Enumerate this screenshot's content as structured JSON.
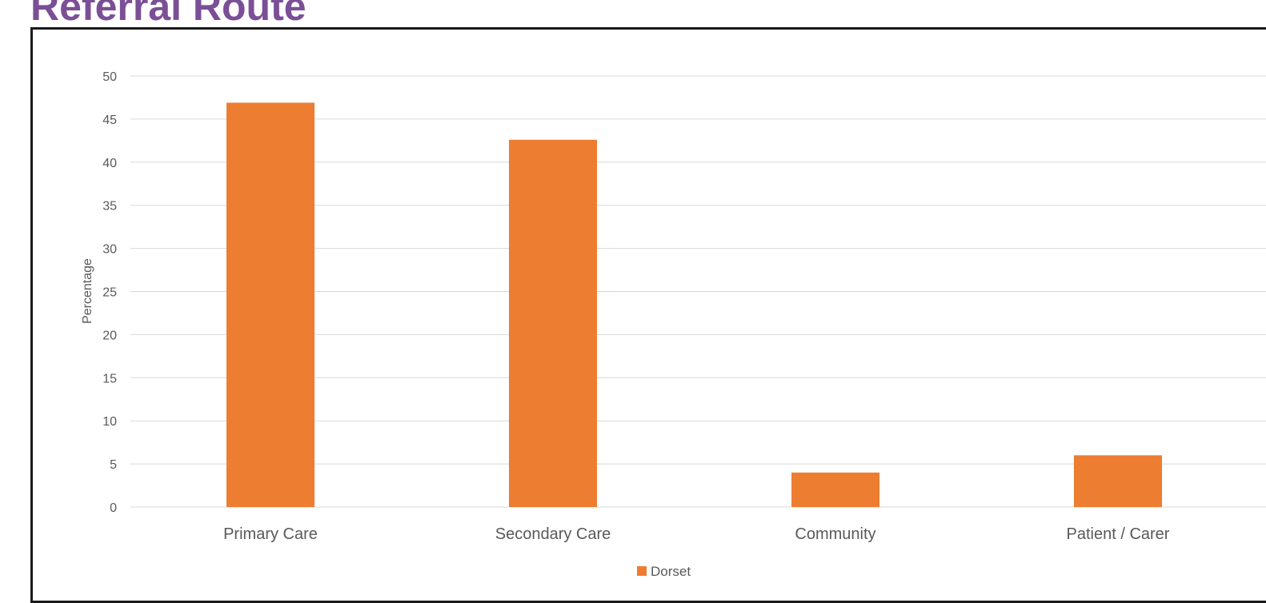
{
  "page": {
    "title": "Referral Route"
  },
  "chart_data": {
    "type": "bar",
    "title": "",
    "xlabel": "",
    "ylabel": "Percentage",
    "categories": [
      "Primary Care",
      "Secondary Care",
      "Community",
      "Patient / Carer"
    ],
    "series": [
      {
        "name": "Dorset",
        "values": [
          46.9,
          42.6,
          4.0,
          6.0
        ],
        "color": "#ed7d31"
      }
    ],
    "ylim": [
      0,
      50
    ],
    "yticks": [
      "0",
      "5",
      "10",
      "15",
      "20",
      "25",
      "30",
      "35",
      "40",
      "45",
      "50"
    ],
    "grid": true,
    "legend": "bottom-center",
    "colors": {
      "gridline": "#d9d9d9",
      "axis_text": "#595959",
      "frame": "#1a1a1a",
      "title": "#7b4f96"
    }
  }
}
